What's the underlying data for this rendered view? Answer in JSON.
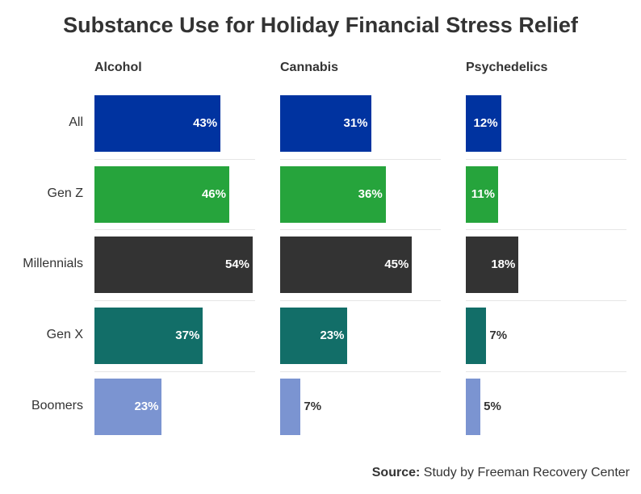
{
  "chart_data": {
    "type": "bar",
    "orientation": "horizontal",
    "title": "Substance Use for Holiday Financial Stress Relief",
    "categories": [
      "All",
      "Gen Z",
      "Millennials",
      "Gen X",
      "Boomers"
    ],
    "category_colors": [
      "#0033a0",
      "#26a43c",
      "#333333",
      "#126e68",
      "#7b94d1"
    ],
    "panels": [
      {
        "name": "Alcohol",
        "values": [
          43,
          46,
          54,
          37,
          23
        ]
      },
      {
        "name": "Cannabis",
        "values": [
          31,
          36,
          45,
          23,
          7
        ]
      },
      {
        "name": "Psychedelics",
        "values": [
          12,
          11,
          18,
          7,
          5
        ]
      }
    ],
    "value_suffix": "%",
    "xlim": [
      0,
      55
    ],
    "grid": false
  },
  "source": {
    "label": "Source:",
    "text": " Study by Freeman Recovery Center"
  }
}
